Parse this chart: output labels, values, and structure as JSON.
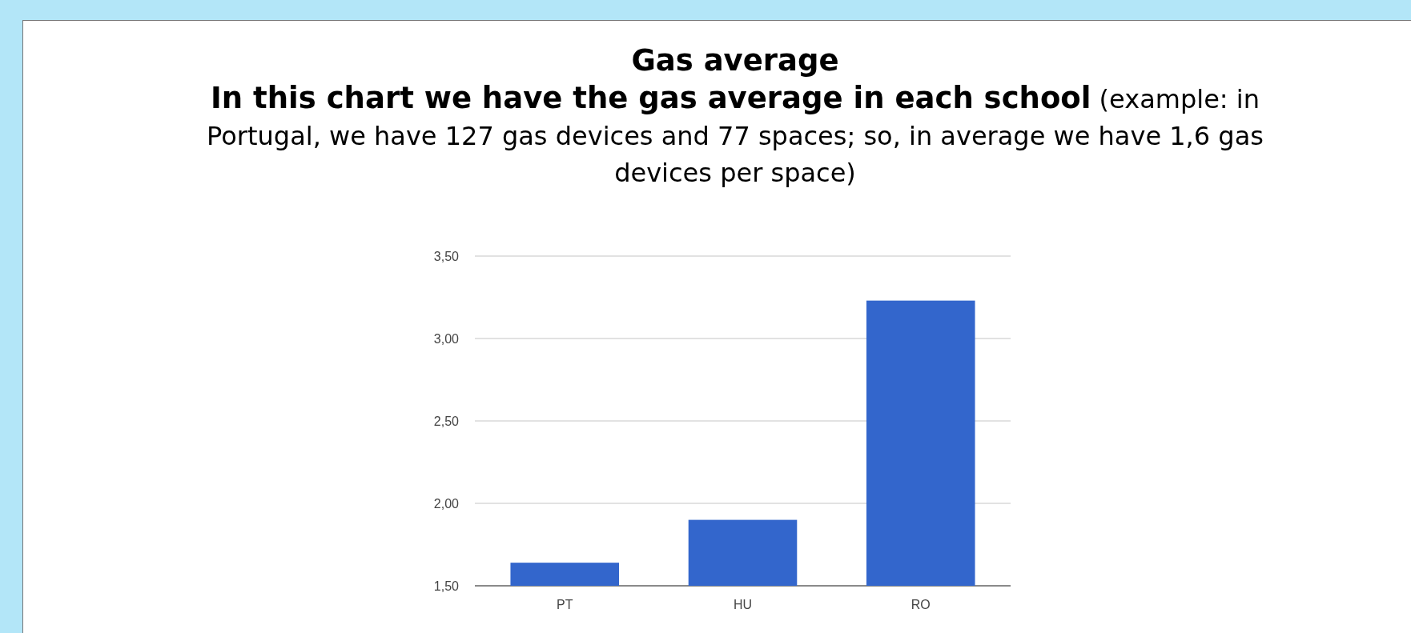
{
  "chart_data": {
    "type": "bar",
    "title": "Gas average",
    "subtitle": "In this chart we have the gas average in each school",
    "annotations": [
      "(example: in Portugal, we have 127 gas devices and 77 spaces; so, in average we have 1,6 gas devices per space)"
    ],
    "categories": [
      "PT",
      "HU",
      "RO"
    ],
    "values": [
      1.64,
      1.9,
      3.23
    ],
    "color": "#3366cc",
    "ylim": [
      1.5,
      3.5
    ],
    "yticks": [
      {
        "value": 1.5,
        "label": "1,50"
      },
      {
        "value": 2,
        "label": "2,00"
      },
      {
        "value": 2.5,
        "label": "2,50"
      },
      {
        "value": 3,
        "label": "3,00"
      },
      {
        "value": 3.5,
        "label": "3,50"
      }
    ],
    "grid": true
  }
}
